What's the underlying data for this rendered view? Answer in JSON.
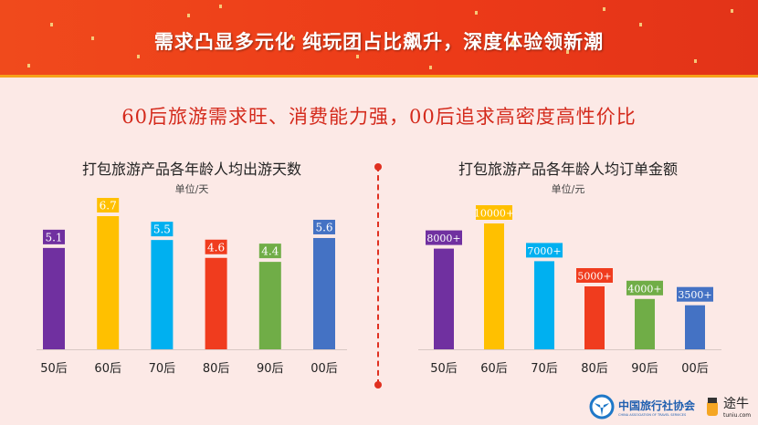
{
  "header": {
    "title": "需求凸显多元化  纯玩团占比飙升，深度体验领新潮"
  },
  "subtitle": "60后旅游需求旺、消费能力强，00后追求高密度高性价比",
  "chart_data": [
    {
      "type": "bar",
      "title": "打包旅游产品各年龄人均出游天数",
      "unit": "单位/天",
      "categories": [
        "50后",
        "60后",
        "70后",
        "80后",
        "90后",
        "00后"
      ],
      "values": [
        5.1,
        6.7,
        5.5,
        4.6,
        4.4,
        5.6
      ],
      "labels": [
        "5.1",
        "6.7",
        "5.5",
        "4.6",
        "4.4",
        "5.6"
      ],
      "colors": [
        "#7030a0",
        "#ffc000",
        "#00b0f0",
        "#f03c1e",
        "#70ad47",
        "#4472c4"
      ],
      "ylim": [
        0,
        7
      ]
    },
    {
      "type": "bar",
      "title": "打包旅游产品各年龄人均订单金额",
      "unit": "单位/元",
      "categories": [
        "50后",
        "60后",
        "70后",
        "80后",
        "90后",
        "00后"
      ],
      "values": [
        8000,
        10000,
        7000,
        5000,
        4000,
        3500
      ],
      "labels": [
        "8000+",
        "10000+",
        "7000+",
        "5000+",
        "4000+",
        "3500+"
      ],
      "colors": [
        "#7030a0",
        "#ffc000",
        "#00b0f0",
        "#f03c1e",
        "#70ad47",
        "#4472c4"
      ],
      "ylim": [
        0,
        10500
      ]
    }
  ],
  "footer": {
    "org_name": "中国旅行社协会",
    "org_name_en": "CHINA ASSOCIATION OF TRAVEL SERVICES",
    "brand": "途牛",
    "brand_url": "tuniu.com"
  }
}
